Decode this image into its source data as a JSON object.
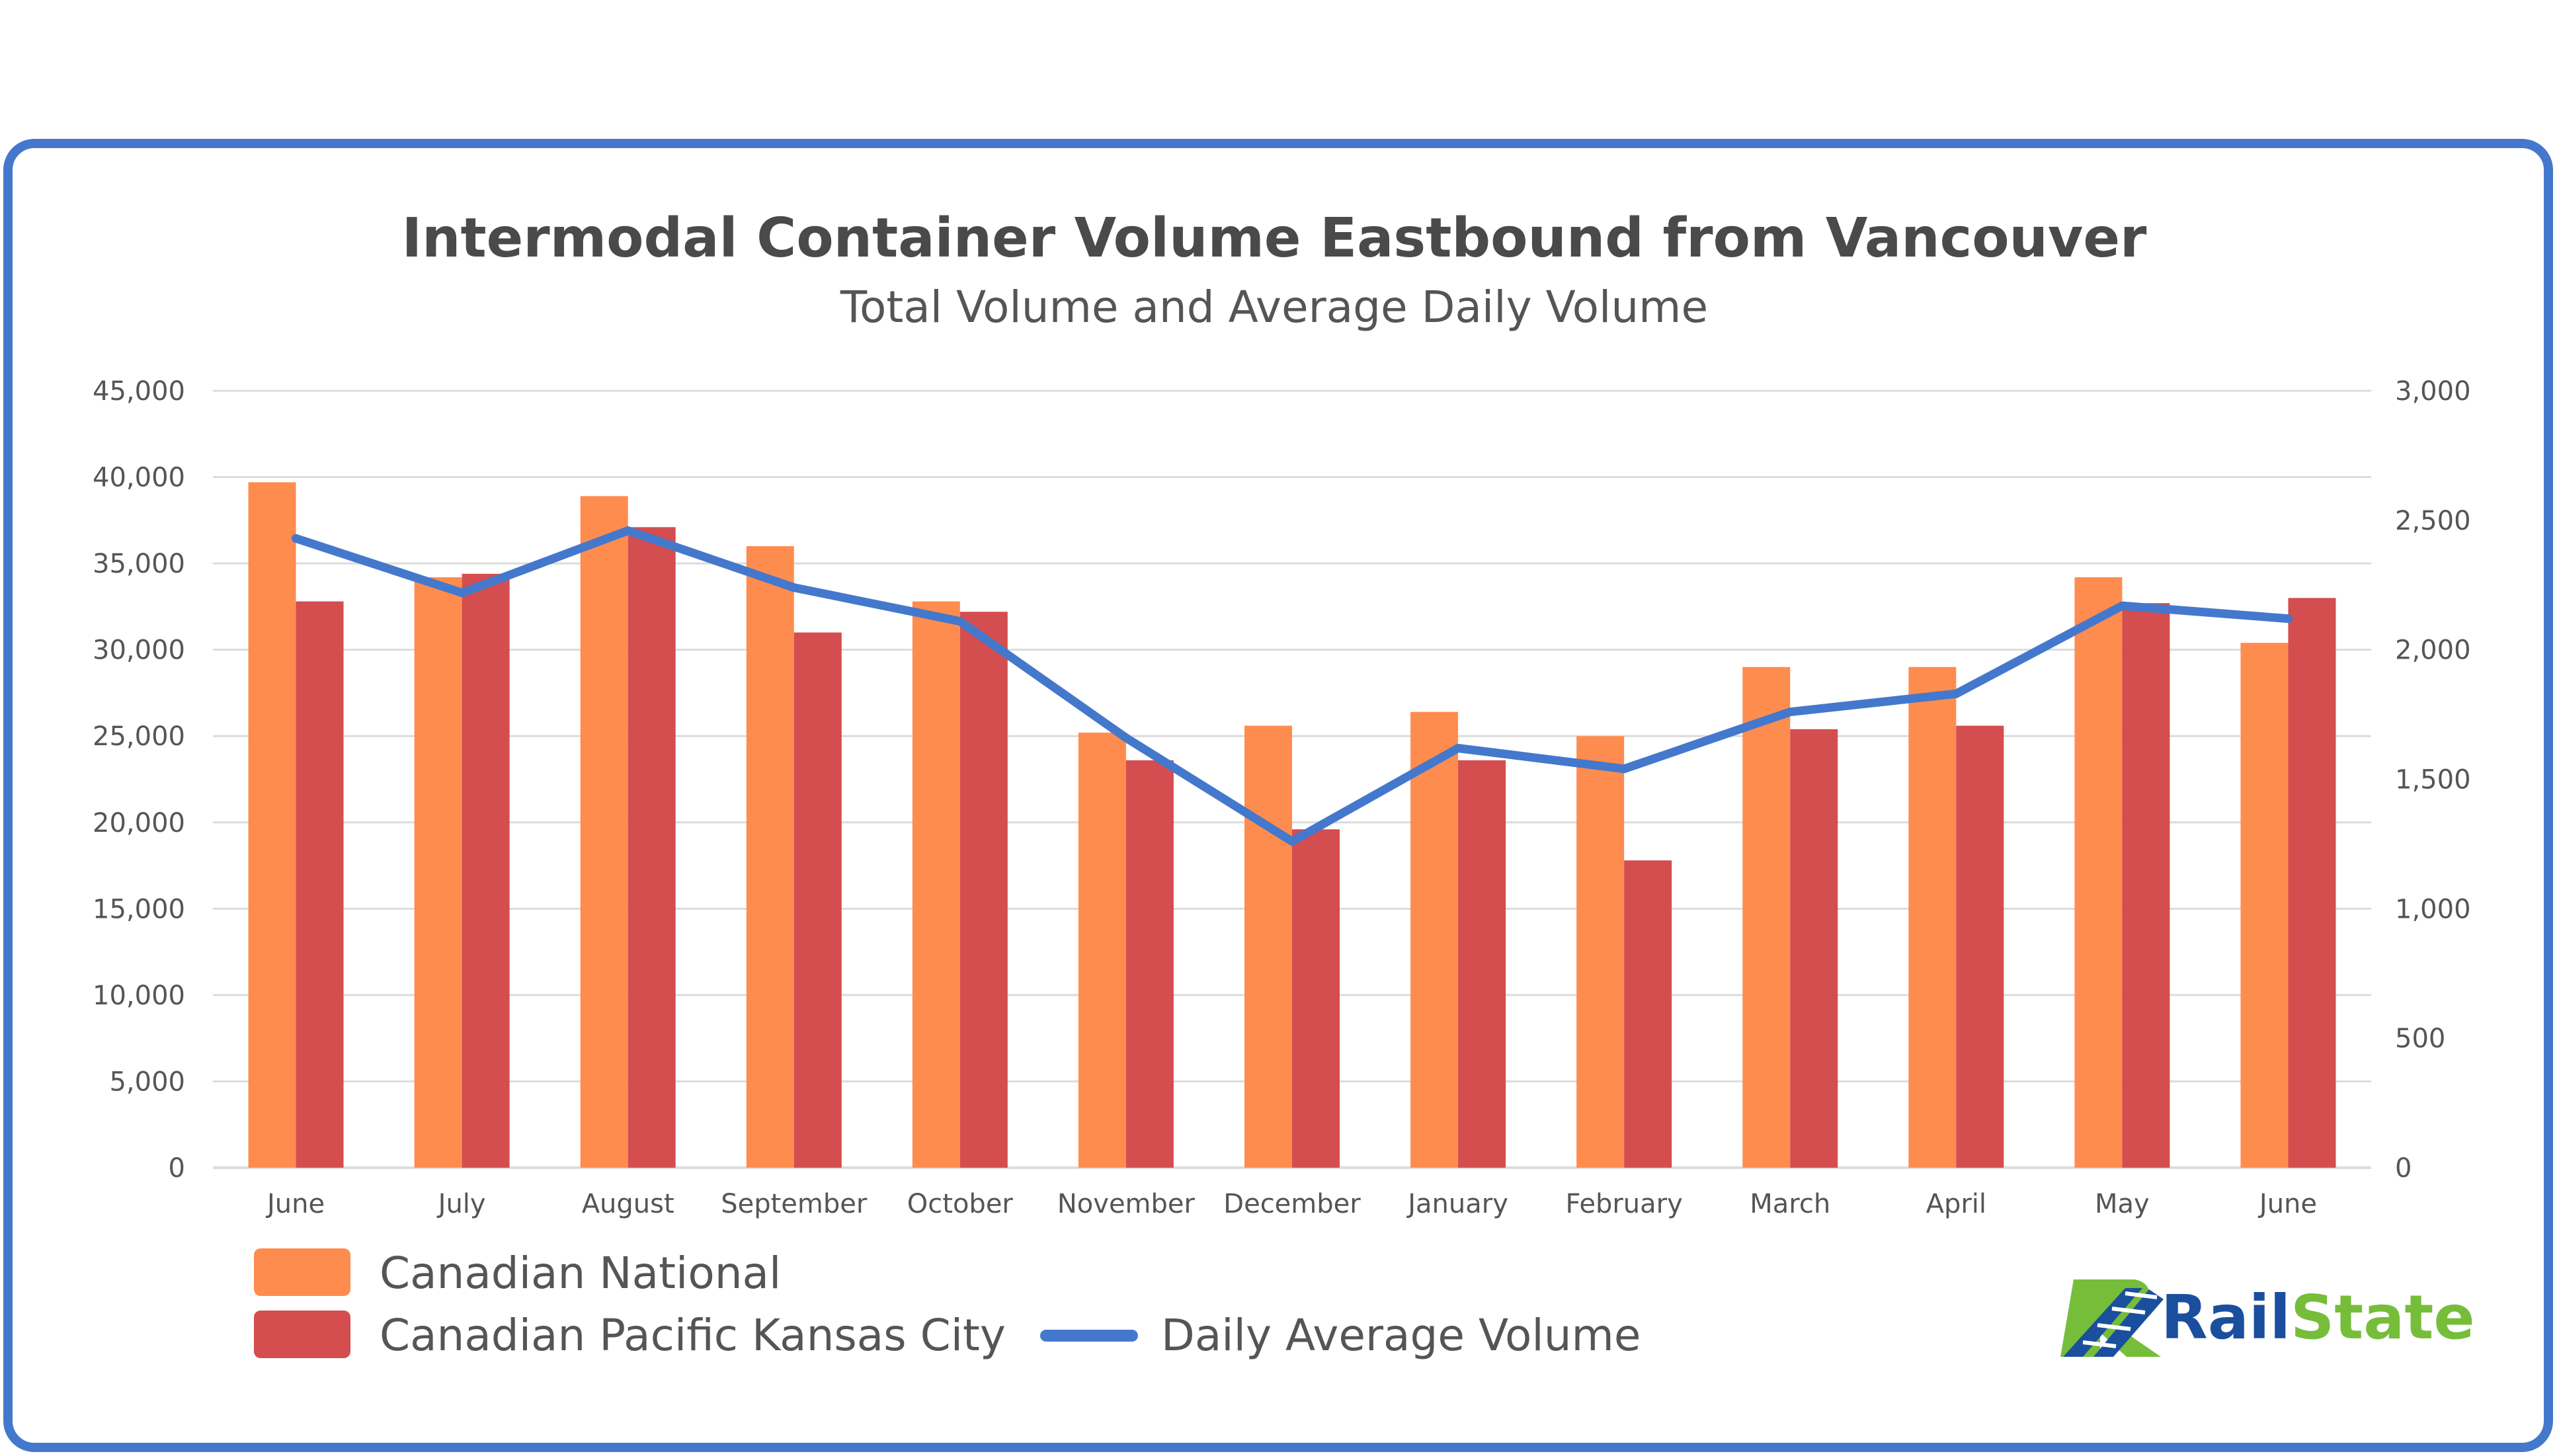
{
  "chart_data": {
    "type": "bar",
    "title": "Intermodal Container Volume Eastbound from Vancouver",
    "subtitle": "Total Volume and Average Daily Volume",
    "categories": [
      "June",
      "July",
      "August",
      "September",
      "October",
      "November",
      "December",
      "January",
      "February",
      "March",
      "April",
      "May",
      "June"
    ],
    "ylim": [
      0,
      45000
    ],
    "yticks": [
      "0",
      "5,000",
      "10,000",
      "15,000",
      "20,000",
      "25,000",
      "30,000",
      "35,000",
      "40,000",
      "45,000"
    ],
    "y2lim": [
      0,
      3000
    ],
    "y2ticks": [
      "0",
      "500",
      "1,000",
      "1,500",
      "2,000",
      "2,500",
      "3,000"
    ],
    "grid": true,
    "legend_position": "bottom-left",
    "series": [
      {
        "name": "Canadian National",
        "type": "bar",
        "axis": "left",
        "color": "#ff8c4f",
        "values": [
          39700,
          34200,
          38900,
          36000,
          32800,
          25200,
          25600,
          26400,
          25000,
          29000,
          29000,
          34200,
          30400
        ]
      },
      {
        "name": "Canadian Pacific Kansas City",
        "type": "bar",
        "axis": "left",
        "color": "#d44d4f",
        "values": [
          32800,
          34400,
          37100,
          31000,
          32200,
          23600,
          19600,
          23600,
          17800,
          25400,
          25600,
          32700,
          33000
        ]
      },
      {
        "name": "Daily Average Volume",
        "type": "line",
        "axis": "right",
        "color": "#4478cc",
        "values": [
          2430,
          2220,
          2460,
          2240,
          2110,
          1660,
          1260,
          1620,
          1540,
          1760,
          1830,
          2170,
          2120
        ]
      }
    ]
  },
  "logo": {
    "brand_name": "RailState",
    "brand_name_color": "#1a4f9e",
    "icon_green": "#76bd3a",
    "icon_blue": "#1a4f9e"
  },
  "frame": {
    "border_color": "#4478cc"
  },
  "gridline_color": "#dcdcdc"
}
